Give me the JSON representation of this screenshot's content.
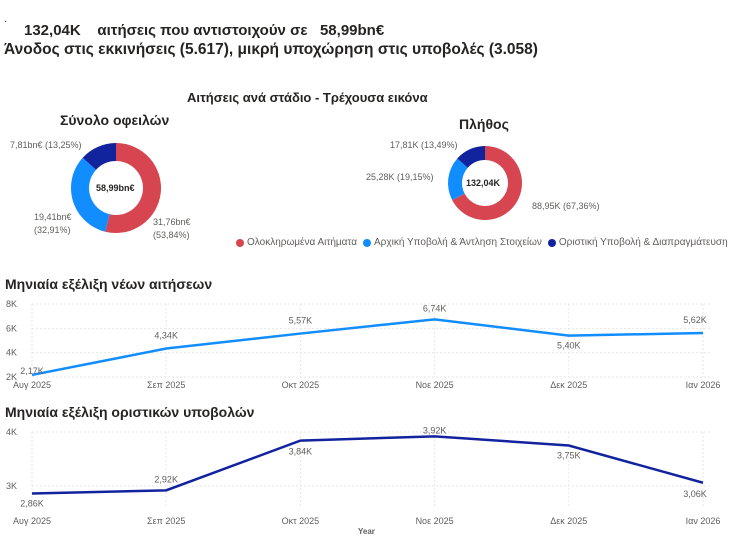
{
  "headline": {
    "line1_count": "132,04K",
    "line1_text": "αιτήσεις που αντιστοιχούν σε",
    "line1_amount": "58,99bn€",
    "line2": "Άνοδος στις εκκινήσεις (5.617), μικρή υποχώρηση στις υποβολές (3.058)"
  },
  "section_title": "Αιτήσεις ανά στάδιο - Τρέχουσα εικόνα",
  "colors": {
    "completed": "#D64550",
    "initial": "#118DFF",
    "final": "#12239E"
  },
  "chart_data": [
    {
      "type": "pie",
      "title": "Σύνολο οφειλών",
      "center_label": "58,99bn€",
      "donut": true,
      "slices": [
        {
          "name": "Ολοκληρωμένα Αιτήματα",
          "value": 31.76,
          "percent": 53.84,
          "label": "31,76bn€",
          "pct_label": "(53,84%)"
        },
        {
          "name": "Αρχική Υποβολή & Άντληση Στοιχείων",
          "value": 19.41,
          "percent": 32.91,
          "label": "19,41bn€",
          "pct_label": "(32,91%)"
        },
        {
          "name": "Οριστική Υποβολή & Διαπραγμάτευση",
          "value": 7.81,
          "percent": 13.25,
          "label": "7,81bn€ (13,25%)"
        }
      ]
    },
    {
      "type": "pie",
      "title": "Πλήθος",
      "center_label": "132,04K",
      "donut": true,
      "slices": [
        {
          "name": "Ολοκληρωμένα Αιτήματα",
          "value": 88.95,
          "percent": 67.36,
          "label": "88,95K (67,36%)"
        },
        {
          "name": "Αρχική Υποβολή & Άντληση Στοιχείων",
          "value": 25.28,
          "percent": 19.15,
          "label": "25,28K (19,15%)"
        },
        {
          "name": "Οριστική Υποβολή & Διαπραγμάτευση",
          "value": 17.81,
          "percent": 13.49,
          "label": "17,81K (13,49%)"
        }
      ]
    },
    {
      "type": "line",
      "title": "Μηνιαία εξέλιξη νέων αιτήσεων",
      "categories": [
        "Αυγ 2025",
        "Σεπ 2025",
        "Οκτ 2025",
        "Νοε 2025",
        "Δεκ 2025",
        "Ιαν 2026"
      ],
      "values": [
        2.17,
        4.34,
        5.57,
        6.74,
        5.4,
        5.62
      ],
      "labels": [
        "2,17K",
        "4,34K",
        "5,57K",
        "6,74K",
        "5,40K",
        "5,62K"
      ],
      "yticks": [
        "2K",
        "4K",
        "6K",
        "8K"
      ],
      "ylim": [
        2,
        8
      ],
      "unit": "K",
      "grid": true
    },
    {
      "type": "line",
      "title": "Μηνιαία εξέλιξη οριστικών υποβολών",
      "categories": [
        "Αυγ 2025",
        "Σεπ 2025",
        "Οκτ 2025",
        "Νοε 2025",
        "Δεκ 2025",
        "Ιαν 2026"
      ],
      "values": [
        2.86,
        2.92,
        3.84,
        3.92,
        3.75,
        3.06
      ],
      "labels": [
        "2,86K",
        "2,92K",
        "3,84K",
        "3,92K",
        "3,75K",
        "3,06K"
      ],
      "yticks": [
        "3K",
        "4K"
      ],
      "ylim": [
        2.7,
        4
      ],
      "unit": "K",
      "xlabel": "Year",
      "grid": true
    }
  ]
}
